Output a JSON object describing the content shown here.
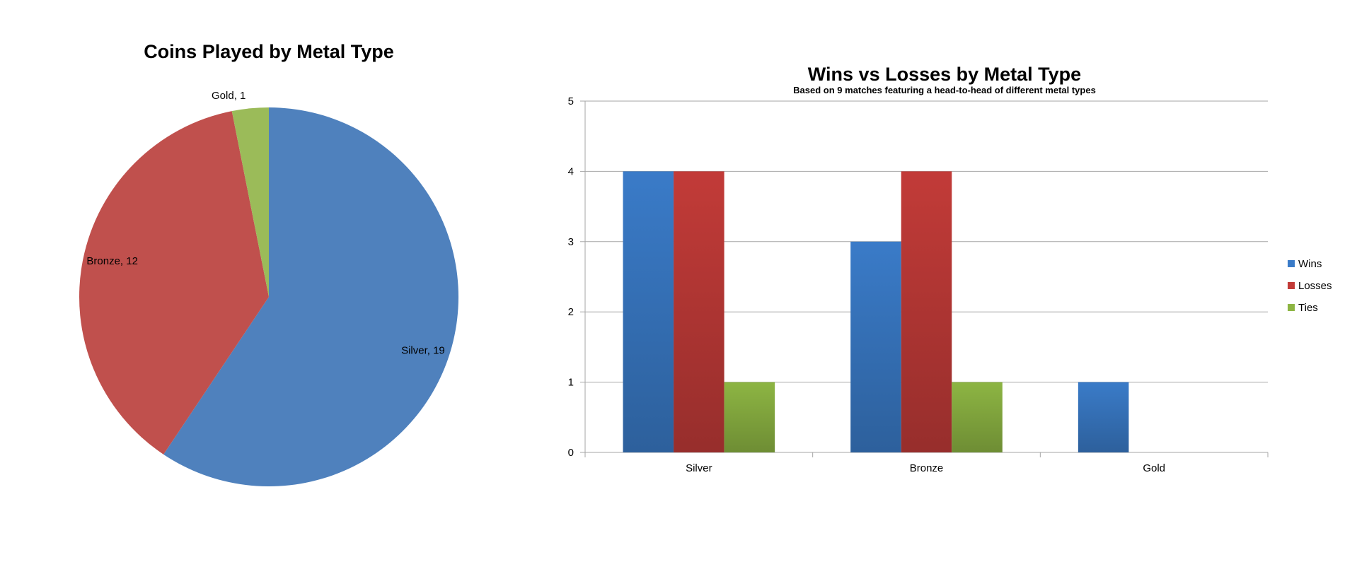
{
  "chart_data": [
    {
      "type": "pie",
      "title": "Coins Played by Metal Type",
      "slices": [
        {
          "label": "Silver",
          "value": 19,
          "data_label": "Silver, 19",
          "color": "#4F81BD"
        },
        {
          "label": "Bronze",
          "value": 12,
          "data_label": "Bronze, 12",
          "color": "#C0504D"
        },
        {
          "label": "Gold",
          "value": 1,
          "data_label": "Gold, 1",
          "color": "#9BBB59"
        }
      ]
    },
    {
      "type": "bar",
      "title": "Wins vs Losses by Metal Type",
      "subtitle": "Based on 9 matches featuring a head-to-head of different metal types",
      "categories": [
        "Silver",
        "Bronze",
        "Gold"
      ],
      "series": [
        {
          "name": "Wins",
          "values": [
            4,
            3,
            1
          ],
          "color": "#3A7BC8"
        },
        {
          "name": "Losses",
          "values": [
            4,
            4,
            0
          ],
          "color": "#C23B38"
        },
        {
          "name": "Ties",
          "values": [
            1,
            1,
            0
          ],
          "color": "#8DB543"
        }
      ],
      "ylim": [
        0,
        5
      ],
      "yticks": [
        "0",
        "1",
        "2",
        "3",
        "4",
        "5"
      ],
      "grid": true,
      "legend": "right"
    }
  ]
}
